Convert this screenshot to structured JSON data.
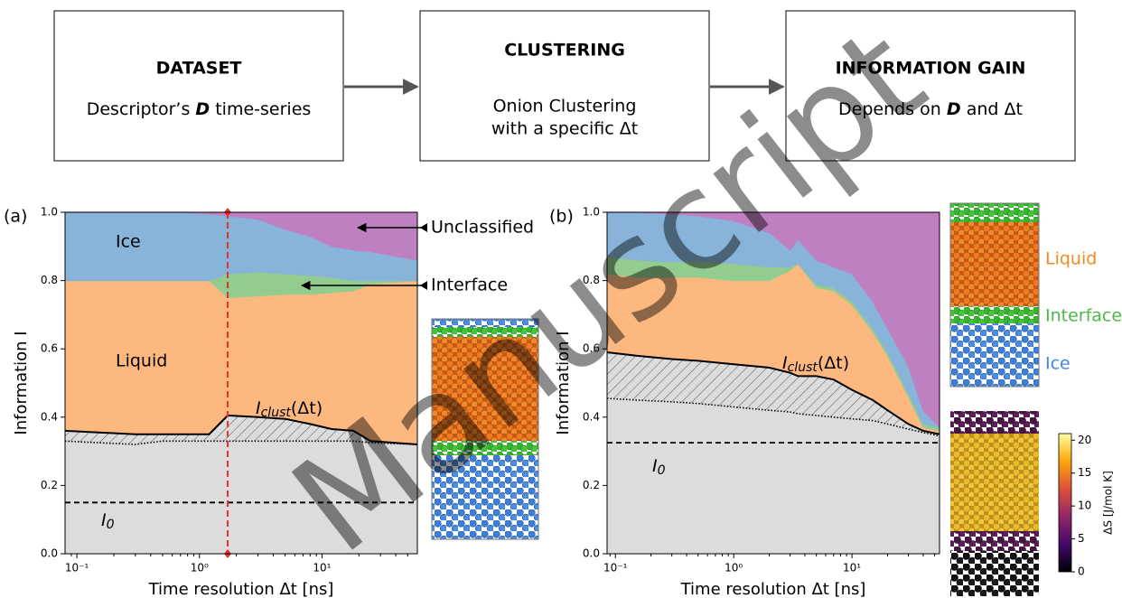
{
  "flow": {
    "boxes": [
      {
        "title": "DATASET",
        "body": [
          "Descriptor’s ",
          "D",
          " time-series"
        ]
      },
      {
        "title": "CLUSTERING",
        "body": [
          "Onion Clustering",
          "with a specific Δt"
        ]
      },
      {
        "title": "INFORMATION GAIN",
        "body": [
          "Depends on ",
          "D",
          " and Δt"
        ]
      }
    ]
  },
  "watermark": "Manuscript",
  "chart_data": [
    {
      "type": "area",
      "panel": "(a)",
      "xlabel": "Time resolution Δt [ns]",
      "ylabel": "Information I",
      "xscale": "log",
      "xlim": [
        0.08,
        60
      ],
      "ylim": [
        0,
        1
      ],
      "xticks": [
        {
          "value": 0.1,
          "label": "10⁻¹"
        },
        {
          "value": 1,
          "label": "10⁰"
        },
        {
          "value": 10,
          "label": "10¹"
        }
      ],
      "yticks": [
        {
          "value": 0,
          "label": "0.0"
        },
        0.2,
        0.4,
        0.6,
        0.8,
        {
          "value": 1,
          "label": "1.0"
        }
      ],
      "x": [
        0.08,
        0.15,
        0.3,
        0.5,
        0.8,
        1.2,
        1.7,
        3,
        5,
        8,
        12,
        18,
        25,
        60
      ],
      "reference": {
        "color": "#dcdcdc",
        "values": [
          0.33,
          0.325,
          0.32,
          0.33,
          0.33,
          0.33,
          0.33,
          0.33,
          0.33,
          0.33,
          0.33,
          0.33,
          0.325,
          0.32
        ]
      },
      "clust": {
        "label": {
          "main": "I",
          "sub": "clust",
          "rest": "(Δt)"
        },
        "values": [
          0.36,
          0.355,
          0.35,
          0.35,
          0.35,
          0.35,
          0.405,
          0.4,
          0.395,
          0.38,
          0.365,
          0.36,
          0.33,
          0.32
        ]
      },
      "series": [
        {
          "name": "Liquid",
          "color": "#fdb880",
          "values": [
            0.44,
            0.445,
            0.45,
            0.45,
            0.45,
            0.45,
            0.345,
            0.355,
            0.365,
            0.38,
            0.4,
            0.41,
            0.46,
            0.48
          ]
        },
        {
          "name": "Interface",
          "color": "#92cc8e",
          "values": [
            0,
            0,
            0,
            0,
            0,
            0,
            0.07,
            0.07,
            0.06,
            0.055,
            0.045,
            0.03,
            0.01,
            0
          ]
        },
        {
          "name": "Ice",
          "color": "#87b4d8",
          "values": [
            0.2,
            0.2,
            0.2,
            0.2,
            0.2,
            0.195,
            0.17,
            0.155,
            0.13,
            0.115,
            0.09,
            0.09,
            0.085,
            0.06
          ]
        },
        {
          "name": "Unclassified",
          "color": "#bf80c2",
          "values": [
            0,
            0,
            0,
            0,
            0,
            0.005,
            0.01,
            0.02,
            0.05,
            0.07,
            0.1,
            0.11,
            0.115,
            0.14
          ]
        }
      ],
      "i0": {
        "label": {
          "main": "I",
          "sub": "0"
        },
        "value": 0.15
      },
      "vline": {
        "value": 1.7,
        "color": "#e8302a"
      }
    },
    {
      "type": "area",
      "panel": "(b)",
      "xlabel": "Time resolution Δt [ns]",
      "ylabel": "Information I",
      "xscale": "log",
      "xlim": [
        0.085,
        55
      ],
      "ylim": [
        0,
        1
      ],
      "xticks": [
        {
          "value": 0.1,
          "label": "10⁻¹"
        },
        {
          "value": 1,
          "label": "10⁰"
        },
        {
          "value": 10,
          "label": "10¹"
        }
      ],
      "yticks": [
        {
          "value": 0,
          "label": "0.0"
        },
        0.2,
        0.4,
        0.6,
        0.8,
        {
          "value": 1,
          "label": "1.0"
        }
      ],
      "x": [
        0.085,
        0.15,
        0.3,
        0.5,
        1,
        2,
        3,
        3.5,
        5,
        7,
        10,
        15,
        20,
        30,
        40,
        55
      ],
      "reference": {
        "color": "#dcdcdc",
        "values": [
          0.455,
          0.45,
          0.445,
          0.44,
          0.43,
          0.42,
          0.415,
          0.41,
          0.405,
          0.4,
          0.395,
          0.39,
          0.38,
          0.365,
          0.355,
          0.345
        ]
      },
      "clust": {
        "label": {
          "main": "I",
          "sub": "clust",
          "rest": "(Δt)"
        },
        "values": [
          0.59,
          0.58,
          0.57,
          0.565,
          0.555,
          0.545,
          0.53,
          0.52,
          0.52,
          0.51,
          0.48,
          0.45,
          0.42,
          0.38,
          0.36,
          0.35
        ]
      },
      "series": [
        {
          "name": "Liquid",
          "color": "#fdb880",
          "values": [
            0.23,
            0.23,
            0.24,
            0.245,
            0.245,
            0.255,
            0.3,
            0.33,
            0.26,
            0.26,
            0.25,
            0.2,
            0.16,
            0.08,
            0.01,
            0.01
          ]
        },
        {
          "name": "Interface",
          "color": "#92cc8e",
          "values": [
            0.05,
            0.05,
            0.045,
            0.045,
            0.05,
            0.04,
            0.01,
            0,
            0.01,
            0.01,
            0.01,
            0.01,
            0.01,
            0.01,
            0.01,
            0.01
          ]
        },
        {
          "name": "Ice",
          "color": "#87b4d8",
          "values": [
            0.13,
            0.14,
            0.14,
            0.135,
            0.125,
            0.1,
            0.05,
            0.07,
            0.07,
            0.06,
            0.08,
            0.08,
            0.07,
            0.08,
            0.04,
            0
          ]
        },
        {
          "name": "Unclassified",
          "color": "#bf80c2",
          "values": [
            0,
            0,
            0.005,
            0.01,
            0.025,
            0.06,
            0.11,
            0.08,
            0.14,
            0.16,
            0.18,
            0.26,
            0.34,
            0.45,
            0.58,
            0.63
          ]
        }
      ],
      "i0": {
        "label": {
          "main": "I",
          "sub": "0"
        },
        "value": 0.325
      },
      "colorbar": {
        "label": "ΔS [J/mol K]",
        "lim": [
          0,
          21
        ],
        "ticks": [
          0,
          5,
          10,
          15,
          20
        ]
      }
    }
  ]
}
